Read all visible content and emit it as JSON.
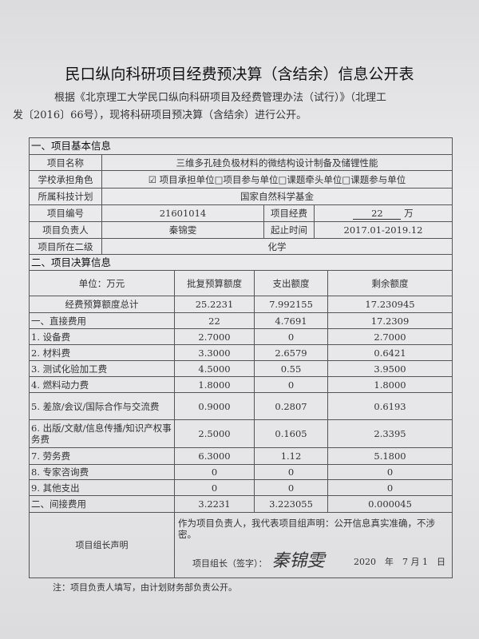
{
  "title": "民口纵向科研项目经费预决算（含结余）信息公开表",
  "intro": [
    "根据《北京理工大学民口纵向科研项目及经费管理办法（试行）》（北理工",
    "发〔2016〕66号），现将科研项目预决算（含结余）进行公开。"
  ],
  "section1": {
    "heading": "一、项目基本信息",
    "name_label": "项目名称",
    "name": "三维多孔硅负极材料的微结构设计制备及储锂性能",
    "role_label": "学校承担角色",
    "role": "☑ 项目承担单位□项目参与单位□课题牵头单位□课题参与单位",
    "plan_label": "所属科技计划",
    "plan": "国家自然科学基金",
    "code_label": "项目编号",
    "code": "21601014",
    "fee_label": "项目经费",
    "fee": "22",
    "fee_unit": "万",
    "leader_label": "项目负责人",
    "leader": "秦锦雯",
    "period_label": "起止时间",
    "period": "2017.01-2019.12",
    "dept_label": "项目所在二级",
    "dept": "化学"
  },
  "section2": {
    "heading": "二、项目决算信息",
    "headers": [
      "单位：万元",
      "批复预算额度",
      "支出额度",
      "剩余额度"
    ],
    "rows": [
      [
        "经费预算额度总计",
        "25.2231",
        "7.992155",
        "17.230945"
      ],
      [
        "一、直接费用",
        "22",
        "4.7691",
        "17.2309"
      ],
      [
        "1. 设备费",
        "2.7000",
        "0",
        "2.7000"
      ],
      [
        "2. 材料费",
        "3.3000",
        "2.6579",
        "0.6421"
      ],
      [
        "3. 测试化验加工费",
        "4.5000",
        "0.55",
        "3.9500"
      ],
      [
        "4. 燃料动力费",
        "1.8000",
        "0",
        "1.8000"
      ],
      [
        "5. 差旅/会议/国际合作与交流费",
        "0.9000",
        "0.2807",
        "0.6193"
      ],
      [
        "6. 出版/文献/信息传播/知识产权事务费",
        "2.5000",
        "0.1605",
        "2.3395"
      ],
      [
        "7. 劳务费",
        "6.3000",
        "1.12",
        "5.1800"
      ],
      [
        "8. 专家咨询费",
        "0",
        "0",
        "0"
      ],
      [
        "9. 其他支出",
        "0",
        "0",
        "0"
      ],
      [
        "二、间接费用",
        "3.2231",
        "3.223055",
        "0.000045"
      ]
    ]
  },
  "declaration": {
    "label": "项目组长声明",
    "text": "作为项目负责人，我代表项目组声明：公开信息真实准确，不涉密。",
    "sign_label": "项目组长（签字）：",
    "signature": "秦锦雯",
    "date": "2020　年　7 月 1　日"
  },
  "note": "注：项目负责人填写，由计划财务部负责公开。"
}
